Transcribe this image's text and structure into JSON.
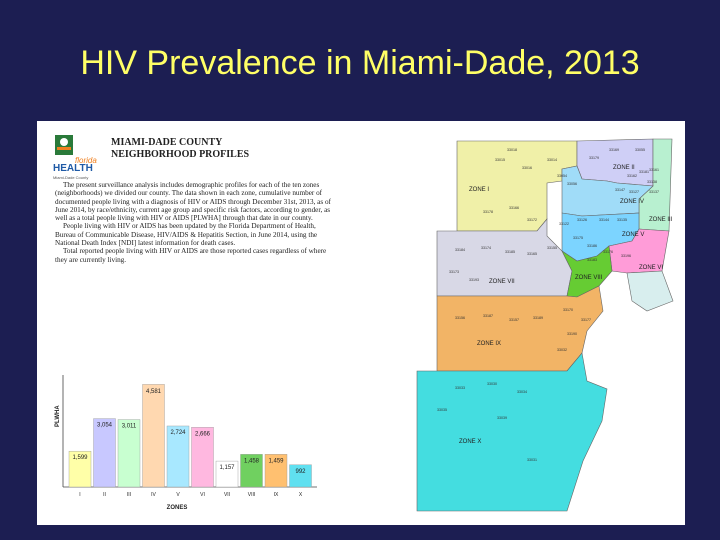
{
  "slide": {
    "title": "HIV Prevalence in Miami-Dade, 2013"
  },
  "profile": {
    "logo_word": "HEALTH",
    "logo_top": "florida",
    "logo_sub": "Miami-Dade County",
    "title_line1": "MIAMI-DADE COUNTY",
    "title_line2": "NEIGHBORHOOD PROFILES",
    "paragraphs": [
      "The present surveillance analysis includes demographic profiles for each of the ten zones (neighborhoods) we divided our county. The data shown in each zone, cumulative number of documented people living with a diagnosis of HIV or AIDS through December 31st, 2013, as of June 2014, by race/ethnicity, current age group and specific risk factors, according to gender, as well as a total people living with HIV or AIDS [PLWHA] through that date in our county.",
      "People living with HIV or AIDS has been updated by the Florida Department of Health, Bureau of Communicable Disease, HIV/AIDS & Hepatitis Section, in June 2014, using the National Death Index [NDI] latest information for death cases.",
      "Total reported people living with HIV or AIDS are those reported cases regardless of where they are currently living."
    ]
  },
  "chart_data": {
    "type": "bar",
    "ylabel": "PLWHA",
    "xlabel": "ZONES",
    "categories": [
      "I",
      "II",
      "III",
      "IV",
      "V",
      "VI",
      "VII",
      "VIII",
      "IX",
      "X"
    ],
    "values": [
      1599,
      3054,
      3011,
      4581,
      2724,
      2666,
      1157,
      1458,
      1459,
      992
    ],
    "value_labels": [
      "1,599",
      "3,054",
      "3,011",
      "4,581",
      "2,724",
      "2,666",
      "1,157",
      "1,458",
      "1,459",
      "992"
    ],
    "colors": [
      "#ffffa8",
      "#c8c8ff",
      "#c8ffd0",
      "#ffd8b0",
      "#a8e8ff",
      "#ffb8e0",
      "#ffffff",
      "#70d060",
      "#ffc070",
      "#60e0f0"
    ],
    "ylim": [
      0,
      5000
    ]
  },
  "map": {
    "zone_labels": [
      "ZONE I",
      "ZONE II",
      "ZONE III",
      "ZONE IV",
      "ZONE V",
      "ZONE VI",
      "ZONE VII",
      "ZONE VIII",
      "ZONE IX",
      "ZONE X"
    ],
    "zip_labels": [
      "33015",
      "33018",
      "33016",
      "33014",
      "33179",
      "33169",
      "33055",
      "33054",
      "33056",
      "33162",
      "33181",
      "33161",
      "33138",
      "33137",
      "33127",
      "33147",
      "33178",
      "33166",
      "33172",
      "33122",
      "33126",
      "33144",
      "33135",
      "33184",
      "33174",
      "33185",
      "33165",
      "33155",
      "33175",
      "33186",
      "33176",
      "33196",
      "33183",
      "33173",
      "33193",
      "33156",
      "33187",
      "33157",
      "33189",
      "33170",
      "33177",
      "33190",
      "33032",
      "33033",
      "33030",
      "33034",
      "33035",
      "33039",
      "33031"
    ],
    "colors": {
      "zone1": "#f0f0a8",
      "zone2": "#cfcff6",
      "zone3": "#b8f0d0",
      "zone4": "#a0dcf8",
      "zone5": "#7cd4ff",
      "zone6": "#ff9cd8",
      "zone7": "#d8d8e6",
      "zone8": "#66cc33",
      "zone9": "#f2b466",
      "zone10": "#44dde0",
      "key": "#d8eeee"
    }
  }
}
